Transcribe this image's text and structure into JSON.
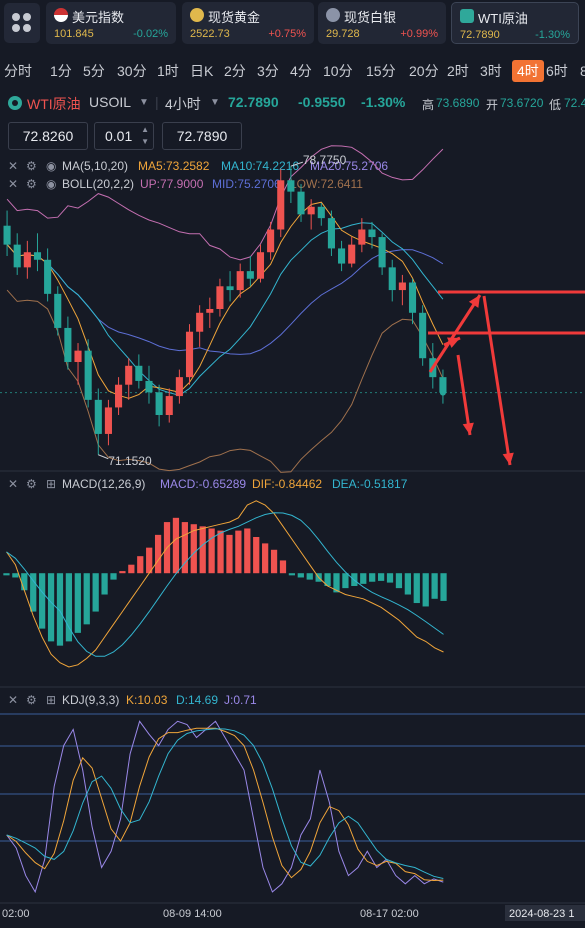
{
  "tickers": [
    {
      "name": "美元指数",
      "price": "101.845",
      "change": "-0.02%",
      "flag": "us-flag-icon"
    },
    {
      "name": "现货黄金",
      "price": "2522.73",
      "change": "+0.75%",
      "flag": "gold-icon"
    },
    {
      "name": "现货白银",
      "price": "29.728",
      "change": "+0.99%",
      "flag": "silver-icon"
    },
    {
      "name": "WTI原油",
      "price": "72.7890",
      "change": "-1.30%",
      "flag": "oil-icon"
    }
  ],
  "timeframes": [
    "分时",
    "1分",
    "5分",
    "30分",
    "1时",
    "日K",
    "2分",
    "3分",
    "4分",
    "10分",
    "15分",
    "20分",
    "2时",
    "3时",
    "4时",
    "6时",
    "8"
  ],
  "active_timeframe": "4时",
  "instrument": {
    "name": "WTI原油",
    "symbol": "USOIL",
    "interval": "4小时",
    "price": "72.7890",
    "change": "-0.9550",
    "change_pct": "-1.30%",
    "high_label": "高",
    "high": "73.6890",
    "open_label": "开",
    "open": "73.6720",
    "low_label": "低",
    "low": "72.4"
  },
  "order": {
    "left_price": "72.8260",
    "lot": "0.01",
    "right_price": "72.7890"
  },
  "legends": {
    "ma": {
      "label": "MA(5,10,20)",
      "ma5": "MA5:73.2582",
      "ma10": "MA10:74.2216",
      "ma20": "MA20:75.2706"
    },
    "boll": {
      "label": "BOLL(20,2,2)",
      "up": "UP:77.9000",
      "mid": "MID:75.2706",
      "low": "LOW:72.6411"
    },
    "macd": {
      "label": "MACD(12,26,9)",
      "macd": "MACD:-0.65289",
      "dif": "DIF:-0.84462",
      "dea": "DEA:-0.51817"
    },
    "kdj": {
      "label": "KDJ(9,3,3)",
      "k": "K:10.03",
      "d": "D:14.69",
      "j": "J:0.71"
    }
  },
  "annotations": {
    "high": "78.7750",
    "low": "71.1520"
  },
  "time_axis": [
    "02:00",
    "08-09 14:00",
    "08-17 02:00",
    "2024-08-23 1"
  ],
  "colors": {
    "up": "#ef5350",
    "down": "#26a69a",
    "gold": "#e0b84c",
    "ma5": "#f0a53a",
    "ma10": "#33b5cf",
    "ma20": "#9a88e8",
    "boll_mid": "#5d6fd6",
    "boll_up": "#c46fb1",
    "boll_low": "#a0714d",
    "arrow": "#f03a3a"
  },
  "chart_data": {
    "type": "candlestick",
    "price_axis": {
      "min": 70.8,
      "max": 79.2
    },
    "candles": [
      {
        "o": 77.2,
        "h": 77.6,
        "l": 76.4,
        "c": 76.7
      },
      {
        "o": 76.7,
        "h": 77.0,
        "l": 75.9,
        "c": 76.1
      },
      {
        "o": 76.1,
        "h": 76.8,
        "l": 75.8,
        "c": 76.5
      },
      {
        "o": 76.5,
        "h": 77.0,
        "l": 76.0,
        "c": 76.3
      },
      {
        "o": 76.3,
        "h": 76.6,
        "l": 75.2,
        "c": 75.4
      },
      {
        "o": 75.4,
        "h": 75.6,
        "l": 74.3,
        "c": 74.5
      },
      {
        "o": 74.5,
        "h": 74.8,
        "l": 73.4,
        "c": 73.6
      },
      {
        "o": 73.6,
        "h": 74.1,
        "l": 73.0,
        "c": 73.9
      },
      {
        "o": 73.9,
        "h": 74.2,
        "l": 72.4,
        "c": 72.6
      },
      {
        "o": 72.6,
        "h": 72.9,
        "l": 71.15,
        "c": 71.7
      },
      {
        "o": 71.7,
        "h": 72.6,
        "l": 71.4,
        "c": 72.4
      },
      {
        "o": 72.4,
        "h": 73.2,
        "l": 72.2,
        "c": 73.0
      },
      {
        "o": 73.0,
        "h": 73.7,
        "l": 72.6,
        "c": 73.5
      },
      {
        "o": 73.5,
        "h": 73.8,
        "l": 72.9,
        "c": 73.1
      },
      {
        "o": 73.1,
        "h": 73.5,
        "l": 72.5,
        "c": 72.8
      },
      {
        "o": 72.8,
        "h": 73.0,
        "l": 71.9,
        "c": 72.2
      },
      {
        "o": 72.2,
        "h": 72.9,
        "l": 72.0,
        "c": 72.7
      },
      {
        "o": 72.7,
        "h": 73.4,
        "l": 72.5,
        "c": 73.2
      },
      {
        "o": 73.2,
        "h": 74.6,
        "l": 73.0,
        "c": 74.4
      },
      {
        "o": 74.4,
        "h": 75.1,
        "l": 74.0,
        "c": 74.9
      },
      {
        "o": 74.9,
        "h": 75.3,
        "l": 74.5,
        "c": 75.0
      },
      {
        "o": 75.0,
        "h": 75.8,
        "l": 74.8,
        "c": 75.6
      },
      {
        "o": 75.6,
        "h": 76.0,
        "l": 75.2,
        "c": 75.5
      },
      {
        "o": 75.5,
        "h": 76.2,
        "l": 75.3,
        "c": 76.0
      },
      {
        "o": 76.0,
        "h": 76.4,
        "l": 75.6,
        "c": 75.8
      },
      {
        "o": 75.8,
        "h": 76.7,
        "l": 75.7,
        "c": 76.5
      },
      {
        "o": 76.5,
        "h": 77.3,
        "l": 76.3,
        "c": 77.1
      },
      {
        "o": 77.1,
        "h": 78.7,
        "l": 76.9,
        "c": 78.4
      },
      {
        "o": 78.4,
        "h": 78.775,
        "l": 77.8,
        "c": 78.1
      },
      {
        "o": 78.1,
        "h": 78.3,
        "l": 77.3,
        "c": 77.5
      },
      {
        "o": 77.5,
        "h": 77.9,
        "l": 77.1,
        "c": 77.7
      },
      {
        "o": 77.7,
        "h": 77.8,
        "l": 77.2,
        "c": 77.4
      },
      {
        "o": 77.4,
        "h": 77.6,
        "l": 76.4,
        "c": 76.6
      },
      {
        "o": 76.6,
        "h": 76.8,
        "l": 76.0,
        "c": 76.2
      },
      {
        "o": 76.2,
        "h": 76.9,
        "l": 76.1,
        "c": 76.7
      },
      {
        "o": 76.7,
        "h": 77.4,
        "l": 76.5,
        "c": 77.1
      },
      {
        "o": 77.1,
        "h": 77.3,
        "l": 76.6,
        "c": 76.9
      },
      {
        "o": 76.9,
        "h": 77.0,
        "l": 75.9,
        "c": 76.1
      },
      {
        "o": 76.1,
        "h": 76.3,
        "l": 75.2,
        "c": 75.5
      },
      {
        "o": 75.5,
        "h": 75.9,
        "l": 75.1,
        "c": 75.7
      },
      {
        "o": 75.7,
        "h": 75.8,
        "l": 74.6,
        "c": 74.9
      },
      {
        "o": 74.9,
        "h": 75.1,
        "l": 73.5,
        "c": 73.7
      },
      {
        "o": 73.7,
        "h": 74.1,
        "l": 72.9,
        "c": 73.2
      },
      {
        "o": 73.2,
        "h": 73.4,
        "l": 72.5,
        "c": 72.79
      }
    ]
  }
}
